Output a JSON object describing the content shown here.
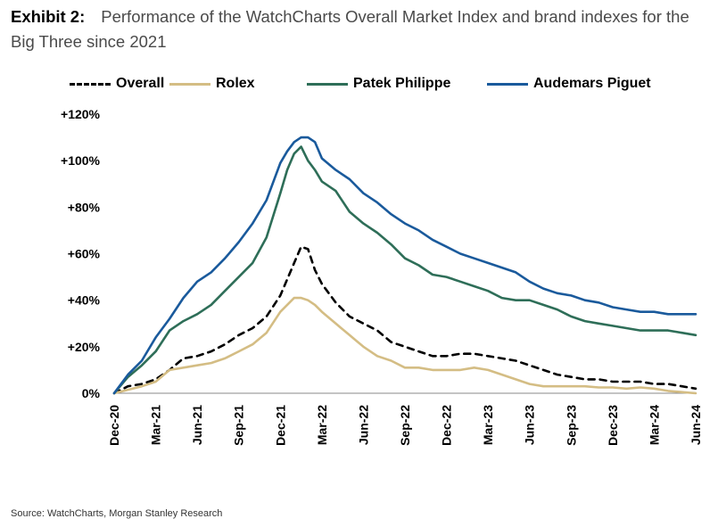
{
  "header": {
    "exhibit": "Exhibit 2:",
    "title": "Performance of the WatchCharts Overall Market Index and brand indexes for the Big Three since 2021"
  },
  "source": "Source: WatchCharts, Morgan Stanley Research",
  "chart_data": {
    "type": "line",
    "title": "Performance of the WatchCharts Overall Market Index and brand indexes for the Big Three since 2021",
    "xlabel": "",
    "ylabel": "",
    "x_tick_labels": [
      "Dec-20",
      "Mar-21",
      "Jun-21",
      "Sep-21",
      "Dec-21",
      "Mar-22",
      "Jun-22",
      "Sep-22",
      "Dec-22",
      "Mar-23",
      "Jun-23",
      "Sep-23",
      "Dec-23",
      "Mar-24",
      "Jun-24"
    ],
    "y_tick_labels": [
      "0%",
      "+20%",
      "+40%",
      "+60%",
      "+80%",
      "+100%",
      "+120%"
    ],
    "ylim": [
      0,
      120
    ],
    "x_unit": "month index from Dec-20",
    "xlim": [
      0,
      42
    ],
    "grid": false,
    "legend_position": "top",
    "series": [
      {
        "name": "Overall",
        "color": "#000000",
        "style": "dashed",
        "x": [
          0,
          1,
          2,
          3,
          4,
          5,
          6,
          7,
          8,
          9,
          10,
          11,
          12,
          13,
          13.5,
          14,
          14.5,
          15,
          16,
          17,
          18,
          19,
          20,
          21,
          22,
          23,
          24,
          25,
          26,
          27,
          28,
          29,
          30,
          31,
          32,
          33,
          34,
          35,
          36,
          37,
          38,
          39,
          40,
          41,
          42
        ],
        "y": [
          0,
          3,
          4,
          6,
          10,
          15,
          16,
          18,
          21,
          25,
          28,
          33,
          42,
          56,
          63,
          62,
          53,
          47,
          39,
          33,
          30,
          27,
          22,
          20,
          18,
          16,
          16,
          17,
          17,
          16,
          15,
          14,
          12,
          10,
          8,
          7,
          6,
          6,
          5,
          5,
          5,
          4,
          4,
          3,
          2
        ]
      },
      {
        "name": "Rolex",
        "color": "#d4bd84",
        "style": "solid",
        "x": [
          0,
          1,
          2,
          3,
          4,
          5,
          6,
          7,
          8,
          9,
          10,
          11,
          12,
          13,
          13.5,
          14,
          14.5,
          15,
          16,
          17,
          18,
          19,
          20,
          21,
          22,
          23,
          24,
          25,
          26,
          27,
          28,
          29,
          30,
          31,
          32,
          33,
          34,
          35,
          36,
          37,
          38,
          39,
          40,
          41,
          42
        ],
        "y": [
          0,
          1.5,
          3,
          5,
          10,
          11,
          12,
          13,
          15,
          18,
          21,
          26,
          35,
          41,
          41,
          40,
          38,
          35,
          30,
          25,
          20,
          16,
          14,
          11,
          11,
          10,
          10,
          10,
          11,
          10,
          8,
          6,
          4,
          3,
          3,
          3,
          3,
          2.5,
          2.5,
          2,
          2.5,
          2,
          1,
          0.5,
          0
        ]
      },
      {
        "name": "Patek Philippe",
        "color": "#2e6e58",
        "style": "solid",
        "x": [
          0,
          1,
          2,
          3,
          4,
          5,
          6,
          7,
          8,
          9,
          10,
          11,
          12,
          12.5,
          13,
          13.5,
          14,
          14.5,
          15,
          16,
          17,
          18,
          19,
          20,
          21,
          22,
          23,
          24,
          25,
          26,
          27,
          28,
          29,
          30,
          31,
          32,
          33,
          34,
          35,
          36,
          37,
          38,
          39,
          40,
          41,
          42
        ],
        "y": [
          0,
          7,
          12,
          18,
          27,
          31,
          34,
          38,
          44,
          50,
          56,
          67,
          86,
          96,
          103,
          106,
          100,
          96,
          91,
          87,
          78,
          73,
          69,
          64,
          58,
          55,
          51,
          50,
          48,
          46,
          44,
          41,
          40,
          40,
          38,
          36,
          33,
          31,
          30,
          29,
          28,
          27,
          27,
          27,
          26,
          25
        ]
      },
      {
        "name": "Audemars Piguet",
        "color": "#1a5a9c",
        "style": "solid",
        "x": [
          0,
          1,
          2,
          3,
          4,
          5,
          6,
          7,
          8,
          9,
          10,
          11,
          12,
          12.5,
          13,
          13.5,
          14,
          14.5,
          15,
          16,
          17,
          18,
          19,
          20,
          21,
          22,
          23,
          24,
          25,
          26,
          27,
          28,
          29,
          30,
          31,
          32,
          33,
          34,
          35,
          36,
          37,
          38,
          39,
          40,
          41,
          42
        ],
        "y": [
          0,
          8,
          14,
          24,
          32,
          41,
          48,
          52,
          58,
          65,
          73,
          83,
          99,
          104,
          108,
          110,
          110,
          108,
          101,
          96,
          92,
          86,
          82,
          77,
          73,
          70,
          66,
          63,
          60,
          58,
          56,
          54,
          52,
          48,
          45,
          43,
          42,
          40,
          39,
          37,
          36,
          35,
          35,
          34,
          34,
          34
        ]
      }
    ]
  }
}
